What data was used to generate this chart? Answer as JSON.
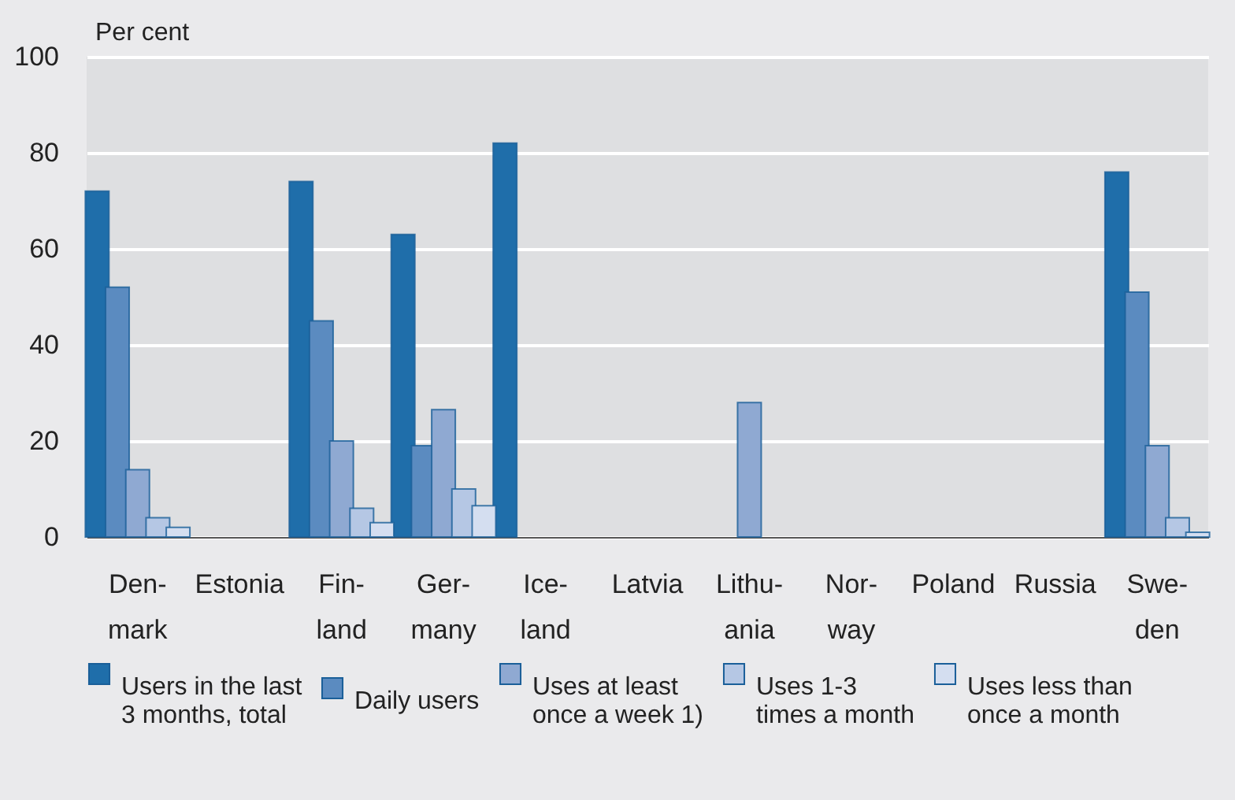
{
  "chart_data": {
    "type": "bar",
    "ylabel": "Per cent",
    "categories": [
      "Den-mark",
      "Estonia",
      "Fin-land",
      "Ger-many",
      "Ice-land",
      "Latvia",
      "Lithu-ania",
      "Nor-way",
      "Poland",
      "Russia",
      "Swe-den"
    ],
    "series": [
      {
        "name": "Users in the last 3 months, total",
        "color": "#1f6eaa",
        "values": [
          72,
          null,
          74,
          63,
          82,
          null,
          null,
          null,
          null,
          null,
          76
        ]
      },
      {
        "name": "Daily users",
        "color": "#5b8bc0",
        "values": [
          52,
          null,
          45,
          19,
          null,
          null,
          null,
          null,
          null,
          null,
          51
        ]
      },
      {
        "name": "Uses at least once a week 1)",
        "color": "#8fa9d2",
        "values": [
          14,
          null,
          20,
          26.5,
          null,
          null,
          28,
          null,
          null,
          null,
          19
        ]
      },
      {
        "name": "Uses 1-3 times a month",
        "color": "#b5c7e4",
        "values": [
          4,
          null,
          6,
          10,
          null,
          null,
          null,
          null,
          null,
          null,
          4
        ]
      },
      {
        "name": "Uses less than once a month",
        "color": "#d4def0",
        "values": [
          2,
          null,
          3,
          6.5,
          null,
          null,
          null,
          null,
          null,
          null,
          1
        ]
      }
    ],
    "ylim": [
      0,
      100
    ],
    "yticks": [
      0,
      20,
      40,
      60,
      80,
      100
    ],
    "grid": "y",
    "legend": "bottom"
  }
}
